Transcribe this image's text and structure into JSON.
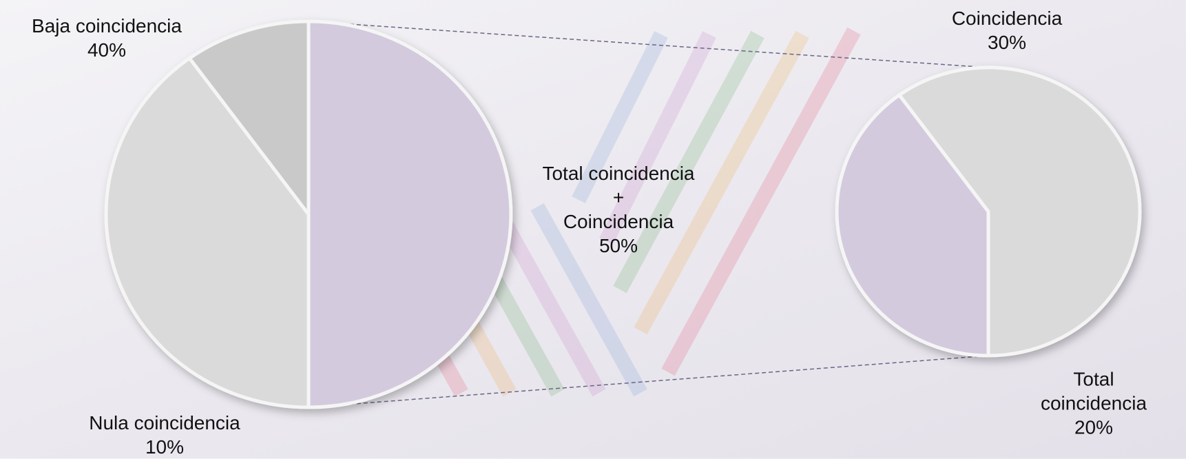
{
  "chart_data": {
    "type": "pie-of-pie",
    "categories": [
      "Baja coincidencia",
      "Nula coincidencia",
      "Total coincidencia\n+\nCoincidencia"
    ],
    "values": [
      40,
      10,
      50
    ],
    "value_labels": [
      "40%",
      "10%",
      "50%"
    ],
    "colors": [
      "#dadada",
      "#c9c9c9",
      "#d4cade"
    ],
    "secondary": {
      "categories": [
        "Coincidencia",
        "Total coincidencia"
      ],
      "values": [
        30,
        20
      ],
      "value_labels": [
        "30%",
        "20%"
      ],
      "colors": [
        "#dadada",
        "#d4cade"
      ]
    }
  }
}
